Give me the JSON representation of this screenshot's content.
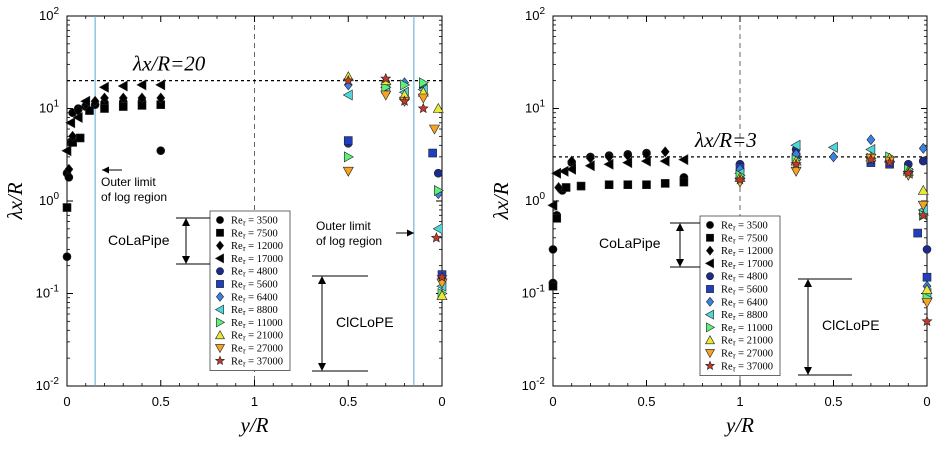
{
  "chart_data": [
    {
      "type": "scatter",
      "panel": "left",
      "xlabel": "y/R",
      "ylabel": "λx/R",
      "yscale": "log",
      "ylim": [
        0.01,
        100
      ],
      "x_ticks": [
        "0",
        "0.5",
        "1",
        "0.5",
        "0"
      ],
      "y_ticks": [
        "10-2",
        "10-1",
        "100",
        "101",
        "102"
      ],
      "reference_line": {
        "label": "λx/R=20",
        "value": 20
      },
      "annotations": [
        "Outer limit of log region",
        "Outer limit of log region",
        "CoLaPipe",
        "ClCLoPE"
      ],
      "series": [
        {
          "name": "Reτ = 3500",
          "group": "CoLaPipe",
          "marker": "circle",
          "color": "#000000",
          "points": [
            [
              0.0,
              0.25
            ],
            [
              0.0,
              2.0
            ],
            [
              0.01,
              1.8
            ],
            [
              0.02,
              4.3
            ],
            [
              0.03,
              9.0
            ],
            [
              0.06,
              10.0
            ],
            [
              0.1,
              10.5
            ],
            [
              0.15,
              11.0
            ],
            [
              0.2,
              11.5
            ],
            [
              0.3,
              11.8
            ],
            [
              0.4,
              12.0
            ],
            [
              0.5,
              3.5
            ]
          ]
        },
        {
          "name": "Reτ = 7500",
          "group": "CoLaPipe",
          "marker": "square",
          "color": "#000000",
          "points": [
            [
              0.0,
              0.85
            ],
            [
              0.03,
              4.3
            ],
            [
              0.07,
              4.8
            ],
            [
              0.12,
              9.5
            ],
            [
              0.2,
              10.0
            ],
            [
              0.3,
              10.5
            ],
            [
              0.4,
              10.8
            ],
            [
              0.5,
              11.0
            ]
          ]
        },
        {
          "name": "Reτ = 12000",
          "group": "CoLaPipe",
          "marker": "diamond",
          "color": "#000000",
          "points": [
            [
              0.01,
              2.2
            ],
            [
              0.03,
              5.0
            ],
            [
              0.06,
              9.5
            ],
            [
              0.1,
              11.0
            ],
            [
              0.15,
              12.0
            ],
            [
              0.2,
              13.0
            ],
            [
              0.3,
              13.0
            ],
            [
              0.4,
              13.0
            ],
            [
              0.5,
              13.0
            ]
          ]
        },
        {
          "name": "Reτ = 17000",
          "group": "CoLaPipe",
          "marker": "tri-left",
          "color": "#000000",
          "points": [
            [
              0.0,
              3.5
            ],
            [
              0.02,
              7.0
            ],
            [
              0.06,
              8.0
            ],
            [
              0.1,
              12.0
            ],
            [
              0.2,
              17.0
            ],
            [
              0.3,
              17.5
            ],
            [
              0.4,
              18.0
            ],
            [
              0.5,
              18.0
            ]
          ]
        },
        {
          "name": "Reτ = 4800",
          "group": "ClCLoPE",
          "marker": "circle",
          "color": "#1a2b8c",
          "points": [
            [
              1.5,
              4.2
            ],
            [
              1.7,
              19.0
            ],
            [
              1.9,
              17.0
            ],
            [
              1.98,
              2.0
            ]
          ]
        },
        {
          "name": "Reτ = 5600",
          "group": "ClCLoPE",
          "marker": "square",
          "color": "#1f3fbf",
          "points": [
            [
              1.5,
              4.5
            ],
            [
              1.7,
              16.0
            ],
            [
              1.95,
              3.3
            ],
            [
              2.0,
              0.16
            ]
          ]
        },
        {
          "name": "Reτ = 6400",
          "group": "ClCLoPE",
          "marker": "diamond",
          "color": "#3b82e0",
          "points": [
            [
              1.5,
              18.0
            ],
            [
              1.7,
              18.5
            ],
            [
              1.8,
              19.0
            ],
            [
              1.9,
              18.0
            ],
            [
              1.98,
              1.2
            ],
            [
              2.0,
              0.14
            ]
          ]
        },
        {
          "name": "Reτ = 8800",
          "group": "ClCLoPE",
          "marker": "tri-left",
          "color": "#4fd6d6",
          "points": [
            [
              1.5,
              14.0
            ],
            [
              1.7,
              17.0
            ],
            [
              1.8,
              15.0
            ],
            [
              1.9,
              16.0
            ],
            [
              1.98,
              0.5
            ],
            [
              2.0,
              0.12
            ]
          ]
        },
        {
          "name": "Reτ = 11000",
          "group": "ClCLoPE",
          "marker": "tri-right",
          "color": "#5ef07a",
          "points": [
            [
              1.5,
              3.0
            ],
            [
              1.7,
              17.0
            ],
            [
              1.8,
              18.0
            ],
            [
              1.9,
              19.0
            ],
            [
              1.98,
              1.3
            ],
            [
              2.0,
              0.1
            ]
          ]
        },
        {
          "name": "Reτ = 21000",
          "group": "ClCLoPE",
          "marker": "tri-up",
          "color": "#e8e83a",
          "points": [
            [
              1.5,
              22.0
            ],
            [
              1.7,
              20.0
            ],
            [
              1.8,
              14.0
            ],
            [
              1.9,
              15.0
            ],
            [
              1.98,
              10.0
            ],
            [
              2.0,
              0.095
            ]
          ]
        },
        {
          "name": "Reτ = 27000",
          "group": "ClCLoPE",
          "marker": "tri-down",
          "color": "#f5a323",
          "points": [
            [
              1.5,
              2.1
            ],
            [
              1.7,
              14.0
            ],
            [
              1.8,
              12.0
            ],
            [
              1.9,
              13.0
            ],
            [
              1.96,
              6.0
            ],
            [
              2.0,
              0.13
            ]
          ]
        },
        {
          "name": "Reτ = 37000",
          "group": "ClCLoPE",
          "marker": "star",
          "color": "#c0392b",
          "points": [
            [
              1.5,
              20.0
            ],
            [
              1.7,
              21.0
            ],
            [
              1.8,
              12.0
            ],
            [
              1.9,
              10.0
            ],
            [
              1.97,
              0.4
            ],
            [
              2.0,
              0.15
            ]
          ]
        }
      ]
    },
    {
      "type": "scatter",
      "panel": "right",
      "xlabel": "y/R",
      "ylabel": "λx/R",
      "yscale": "log",
      "ylim": [
        0.01,
        100
      ],
      "x_ticks": [
        "0",
        "0.5",
        "1",
        "0.5",
        "0"
      ],
      "y_ticks": [
        "10-2",
        "10-1",
        "100",
        "101",
        "102"
      ],
      "reference_line": {
        "label": "λx/R=3",
        "value": 3
      },
      "annotations": [
        "CoLaPipe",
        "ClCLoPE"
      ],
      "series": [
        {
          "name": "Reτ = 3500",
          "group": "CoLaPipe",
          "marker": "circle",
          "color": "#000000",
          "points": [
            [
              0.0,
              0.13
            ],
            [
              0.0,
              0.3
            ],
            [
              0.02,
              0.7
            ],
            [
              0.05,
              1.3
            ],
            [
              0.1,
              2.6
            ],
            [
              0.2,
              3.0
            ],
            [
              0.3,
              3.1
            ],
            [
              0.4,
              3.2
            ],
            [
              0.5,
              3.3
            ],
            [
              0.7,
              1.8
            ]
          ]
        },
        {
          "name": "Reτ = 7500",
          "group": "CoLaPipe",
          "marker": "square",
          "color": "#000000",
          "points": [
            [
              0.0,
              0.12
            ],
            [
              0.02,
              0.65
            ],
            [
              0.07,
              1.4
            ],
            [
              0.15,
              1.45
            ],
            [
              0.3,
              1.5
            ],
            [
              0.4,
              1.5
            ],
            [
              0.5,
              1.5
            ],
            [
              0.6,
              1.55
            ],
            [
              0.7,
              1.6
            ]
          ]
        },
        {
          "name": "Reτ = 12000",
          "group": "CoLaPipe",
          "marker": "diamond",
          "color": "#000000",
          "points": [
            [
              0.03,
              1.4
            ],
            [
              0.1,
              2.7
            ],
            [
              0.2,
              2.9
            ],
            [
              0.3,
              3.0
            ],
            [
              0.4,
              3.1
            ],
            [
              0.5,
              3.2
            ],
            [
              0.6,
              3.4
            ]
          ]
        },
        {
          "name": "Reτ = 17000",
          "group": "CoLaPipe",
          "marker": "tri-left",
          "color": "#000000",
          "points": [
            [
              0.0,
              0.9
            ],
            [
              0.02,
              2.0
            ],
            [
              0.06,
              2.1
            ],
            [
              0.1,
              2.2
            ],
            [
              0.2,
              2.4
            ],
            [
              0.3,
              2.5
            ],
            [
              0.4,
              2.6
            ],
            [
              0.5,
              2.7
            ],
            [
              0.6,
              2.7
            ],
            [
              0.7,
              2.8
            ]
          ]
        },
        {
          "name": "Reτ = 4800",
          "group": "ClCLoPE",
          "marker": "circle",
          "color": "#1a2b8c",
          "points": [
            [
              1.0,
              2.5
            ],
            [
              1.3,
              3.6
            ],
            [
              1.7,
              2.7
            ],
            [
              1.9,
              2.5
            ],
            [
              1.98,
              2.7
            ],
            [
              2.0,
              0.3
            ]
          ]
        },
        {
          "name": "Reτ = 5600",
          "group": "ClCLoPE",
          "marker": "square",
          "color": "#1f3fbf",
          "points": [
            [
              1.0,
              2.3
            ],
            [
              1.3,
              3.0
            ],
            [
              1.7,
              2.6
            ],
            [
              1.8,
              2.5
            ],
            [
              1.95,
              0.45
            ],
            [
              2.0,
              0.15
            ]
          ]
        },
        {
          "name": "Reτ = 6400",
          "group": "ClCLoPE",
          "marker": "diamond",
          "color": "#3b82e0",
          "points": [
            [
              1.0,
              2.2
            ],
            [
              1.3,
              3.2
            ],
            [
              1.5,
              3.0
            ],
            [
              1.7,
              4.6
            ],
            [
              1.8,
              2.8
            ],
            [
              1.98,
              3.7
            ],
            [
              2.0,
              0.12
            ]
          ]
        },
        {
          "name": "Reτ = 8800",
          "group": "ClCLoPE",
          "marker": "tri-left",
          "color": "#4fd6d6",
          "points": [
            [
              1.0,
              2.0
            ],
            [
              1.3,
              4.0
            ],
            [
              1.5,
              3.8
            ],
            [
              1.7,
              3.6
            ],
            [
              1.9,
              2.0
            ],
            [
              1.98,
              0.8
            ],
            [
              2.0,
              0.1
            ]
          ]
        },
        {
          "name": "Reτ = 11000",
          "group": "ClCLoPE",
          "marker": "tri-right",
          "color": "#5ef07a",
          "points": [
            [
              1.0,
              1.9
            ],
            [
              1.3,
              2.8
            ],
            [
              1.7,
              2.9
            ],
            [
              1.8,
              3.0
            ],
            [
              1.9,
              2.2
            ],
            [
              1.98,
              0.7
            ],
            [
              2.0,
              0.09
            ]
          ]
        },
        {
          "name": "Reτ = 21000",
          "group": "ClCLoPE",
          "marker": "tri-up",
          "color": "#e8e83a",
          "points": [
            [
              1.0,
              1.8
            ],
            [
              1.3,
              2.7
            ],
            [
              1.7,
              3.0
            ],
            [
              1.8,
              2.9
            ],
            [
              1.9,
              2.1
            ],
            [
              1.98,
              1.3
            ],
            [
              2.0,
              0.11
            ]
          ]
        },
        {
          "name": "Reτ = 27000",
          "group": "ClCLoPE",
          "marker": "tri-down",
          "color": "#f5a323",
          "points": [
            [
              1.0,
              1.6
            ],
            [
              1.3,
              2.1
            ],
            [
              1.7,
              2.9
            ],
            [
              1.8,
              2.7
            ],
            [
              1.9,
              1.9
            ],
            [
              1.98,
              0.9
            ],
            [
              2.0,
              0.08
            ]
          ]
        },
        {
          "name": "Reτ = 37000",
          "group": "ClCLoPE",
          "marker": "star",
          "color": "#c0392b",
          "points": [
            [
              1.0,
              1.7
            ],
            [
              1.3,
              2.5
            ],
            [
              1.7,
              2.8
            ],
            [
              1.8,
              2.6
            ],
            [
              1.9,
              2.0
            ],
            [
              1.98,
              0.7
            ],
            [
              2.0,
              0.05
            ]
          ]
        }
      ]
    }
  ],
  "colors": {
    "guide_line": "#5aa7d6",
    "dashed_line": "#555555"
  }
}
